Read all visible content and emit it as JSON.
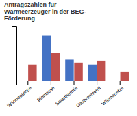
{
  "chart_data": {
    "type": "bar",
    "title": [
      "Antragszahlen für",
      "Wärmeerzeuger in der BEG-",
      "Förderung"
    ],
    "categories": [
      "Wärmepumpe",
      "Biomasse",
      "Solarthermie",
      "Gasbrennwert",
      "Wärmenetze"
    ],
    "series": [
      {
        "color": "#4472C4",
        "values": [
          0,
          90,
          42,
          32,
          0
        ]
      },
      {
        "color": "#C0504D",
        "values": [
          32,
          55,
          36,
          40,
          18
        ]
      }
    ],
    "ylim": [
      0,
      110
    ],
    "yticks": [],
    "grid": false,
    "tick_labels": "x"
  }
}
